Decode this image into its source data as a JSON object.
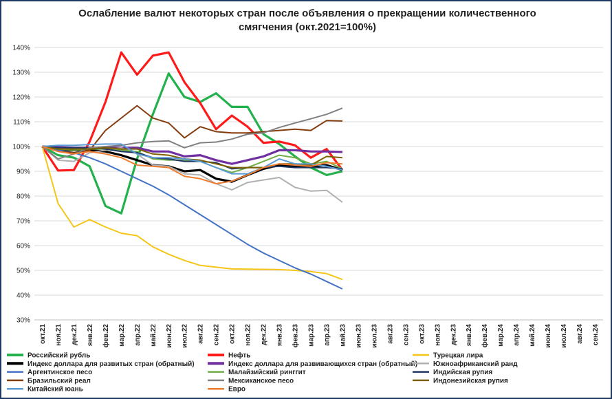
{
  "chart_data": {
    "type": "line",
    "title": "Ослабление валют некоторых стран после объявления о прекращении количественного смягчения  (окт.2021=100%)",
    "categories": [
      "окт.21",
      "ноя.21",
      "дек.21",
      "янв.22",
      "фев.22",
      "мар.22",
      "апр.22",
      "май.22",
      "июн.22",
      "июл.22",
      "авг.22",
      "сен.22",
      "окт.22",
      "ноя.22",
      "дек.22",
      "янв.23",
      "фев.23",
      "мар.23",
      "апр.23",
      "май.23",
      "июн.23",
      "июл.23",
      "авг.23",
      "сен.23",
      "окт.23",
      "ноя.23",
      "дек.23",
      "янв.24",
      "фев.24",
      "мар.24",
      "апр.24",
      "май.24",
      "июн.24",
      "июл.24",
      "авг.24",
      "сен.24"
    ],
    "ylim": [
      30,
      140
    ],
    "yticks": [
      {
        "value": 30,
        "label": "30%"
      },
      {
        "value": 40,
        "label": "40%"
      },
      {
        "value": 50,
        "label": "50%"
      },
      {
        "value": 60,
        "label": "60%"
      },
      {
        "value": 70,
        "label": "70%"
      },
      {
        "value": 80,
        "label": "80%"
      },
      {
        "value": 90,
        "label": "90%"
      },
      {
        "value": 100,
        "label": "100%"
      },
      {
        "value": 110,
        "label": "110%"
      },
      {
        "value": 120,
        "label": "120%"
      },
      {
        "value": 130,
        "label": "130%"
      },
      {
        "value": 140,
        "label": "140%"
      }
    ],
    "grid": true,
    "series": [
      {
        "name": "Российский рубль",
        "color": "#22b14c",
        "values": [
          100,
          96.5,
          95.5,
          92,
          76,
          73,
          95,
          113,
          129.5,
          120,
          118,
          121.5,
          116,
          116,
          105,
          101,
          96,
          91.5,
          88.5,
          90,
          null,
          null,
          null,
          null,
          null,
          null,
          null,
          null,
          null,
          null,
          null,
          null,
          null,
          null,
          null,
          null
        ]
      },
      {
        "name": "Нефть",
        "color": "#ff1a1a",
        "values": [
          100,
          90.3,
          90.5,
          102,
          118,
          138,
          129,
          136.7,
          138,
          126,
          117.5,
          107,
          112.5,
          108,
          101.5,
          102,
          100.5,
          95.5,
          99,
          90.5,
          null,
          null,
          null,
          null,
          null,
          null,
          null,
          null,
          null,
          null,
          null,
          null,
          null,
          null,
          null,
          null
        ]
      },
      {
        "name": "Турецкая лира",
        "color": "#f5c518",
        "values": [
          100,
          77,
          67.5,
          70.5,
          67.5,
          65,
          64,
          59.5,
          56.5,
          54,
          52,
          51.3,
          50.6,
          50.5,
          50.4,
          50.3,
          50,
          49.5,
          48.7,
          46.3,
          null,
          null,
          null,
          null,
          null,
          null,
          null,
          null,
          null,
          null,
          null,
          null,
          null,
          null,
          null,
          null
        ]
      },
      {
        "name": "Индекс доллара для развитых стран (обратный)",
        "color": "#000000",
        "values": [
          100,
          98.5,
          98.5,
          98.5,
          98,
          96.5,
          94.5,
          92.5,
          92,
          90,
          90.5,
          87,
          85.8,
          88.5,
          91,
          92.5,
          92,
          92,
          92.5,
          90.5,
          null,
          null,
          null,
          null,
          null,
          null,
          null,
          null,
          null,
          null,
          null,
          null,
          null,
          null,
          null,
          null
        ]
      },
      {
        "name": "Индекс доллара для развивающихся стран (обратный)",
        "color": "#7030a0",
        "values": [
          100,
          99.8,
          99.5,
          99.5,
          99.6,
          99.5,
          99.5,
          98,
          98,
          96,
          96.5,
          94.5,
          93,
          94.5,
          96,
          98.5,
          98.5,
          98,
          98,
          97.8,
          null,
          null,
          null,
          null,
          null,
          null,
          null,
          null,
          null,
          null,
          null,
          null,
          null,
          null,
          null,
          null
        ]
      },
      {
        "name": "Южноафриканский ранд",
        "color": "#b0b0b0",
        "values": [
          100,
          94.5,
          94,
          97.5,
          98.5,
          99.5,
          97,
          92.5,
          92,
          89,
          88.5,
          85,
          82.5,
          85.5,
          86.5,
          87.5,
          83.5,
          82,
          82.3,
          77.5,
          null,
          null,
          null,
          null,
          null,
          null,
          null,
          null,
          null,
          null,
          null,
          null,
          null,
          null,
          null,
          null
        ]
      },
      {
        "name": "Аргентинское песо",
        "color": "#4472c4",
        "values": [
          100,
          98.5,
          97.5,
          95.5,
          93,
          90,
          87,
          84,
          80.5,
          76.5,
          72.5,
          68.5,
          64.5,
          60.5,
          57,
          54,
          51,
          48.5,
          45.5,
          42.5,
          null,
          null,
          null,
          null,
          null,
          null,
          null,
          null,
          null,
          null,
          null,
          null,
          null,
          null,
          null,
          null
        ]
      },
      {
        "name": "Малайзийский ринггит",
        "color": "#70ad47",
        "values": [
          100,
          99,
          98.5,
          99,
          99,
          98.5,
          98,
          95,
          94.5,
          94.5,
          94,
          91.5,
          89.5,
          91.5,
          94,
          96.5,
          95.5,
          93,
          94,
          91,
          null,
          null,
          null,
          null,
          null,
          null,
          null,
          null,
          null,
          null,
          null,
          null,
          null,
          null,
          null,
          null
        ]
      },
      {
        "name": "Индийская рупия",
        "color": "#203864",
        "values": [
          100,
          99.5,
          99.5,
          99.5,
          99,
          98,
          97.5,
          95.5,
          95,
          94,
          94,
          93.5,
          91,
          91.5,
          91.5,
          92,
          91.5,
          91.5,
          91.5,
          91,
          null,
          null,
          null,
          null,
          null,
          null,
          null,
          null,
          null,
          null,
          null,
          null,
          null,
          null,
          null,
          null
        ]
      },
      {
        "name": "Бразильский реал",
        "color": "#843c0c",
        "values": [
          100,
          98,
          97.5,
          98.5,
          106.5,
          111.5,
          116.5,
          111.5,
          109.5,
          103.5,
          108,
          106,
          105.5,
          105.5,
          106,
          106.5,
          107,
          106.5,
          110.5,
          110.3,
          null,
          null,
          null,
          null,
          null,
          null,
          null,
          null,
          null,
          null,
          null,
          null,
          null,
          null,
          null,
          null
        ]
      },
      {
        "name": "Мексиканское песо",
        "color": "#808080",
        "values": [
          100,
          95,
          97,
          99.5,
          100,
          100.5,
          101.5,
          102,
          102.3,
          99.5,
          101.5,
          101.8,
          103,
          105,
          105.5,
          107.7,
          109.5,
          111.2,
          113,
          115.5,
          null,
          null,
          null,
          null,
          null,
          null,
          null,
          null,
          null,
          null,
          null,
          null,
          null,
          null,
          null,
          null
        ]
      },
      {
        "name": "Индонезийская рупия",
        "color": "#7f6000",
        "values": [
          100,
          99,
          99,
          99,
          99.5,
          99,
          99,
          97,
          96.5,
          95,
          94.5,
          93,
          91.5,
          91.5,
          91.5,
          93,
          93,
          92.5,
          96,
          95.5,
          null,
          null,
          null,
          null,
          null,
          null,
          null,
          null,
          null,
          null,
          null,
          null,
          null,
          null,
          null,
          null
        ]
      },
      {
        "name": "Китайский юань",
        "color": "#5b9bd5",
        "values": [
          100,
          100.5,
          100.5,
          100.8,
          101,
          101,
          97,
          95.5,
          95.5,
          95,
          94,
          91.5,
          89,
          89,
          91.5,
          95,
          93,
          93,
          92,
          90.5,
          null,
          null,
          null,
          null,
          null,
          null,
          null,
          null,
          null,
          null,
          null,
          null,
          null,
          null,
          null,
          null
        ]
      },
      {
        "name": "Евро",
        "color": "#ed7d31",
        "values": [
          100,
          98,
          97,
          98,
          97,
          95.5,
          92.5,
          92,
          91.5,
          88,
          87,
          85,
          86,
          88.5,
          91.5,
          93,
          92.5,
          92,
          93.5,
          93,
          null,
          null,
          null,
          null,
          null,
          null,
          null,
          null,
          null,
          null,
          null,
          null,
          null,
          null,
          null,
          null
        ]
      }
    ]
  }
}
